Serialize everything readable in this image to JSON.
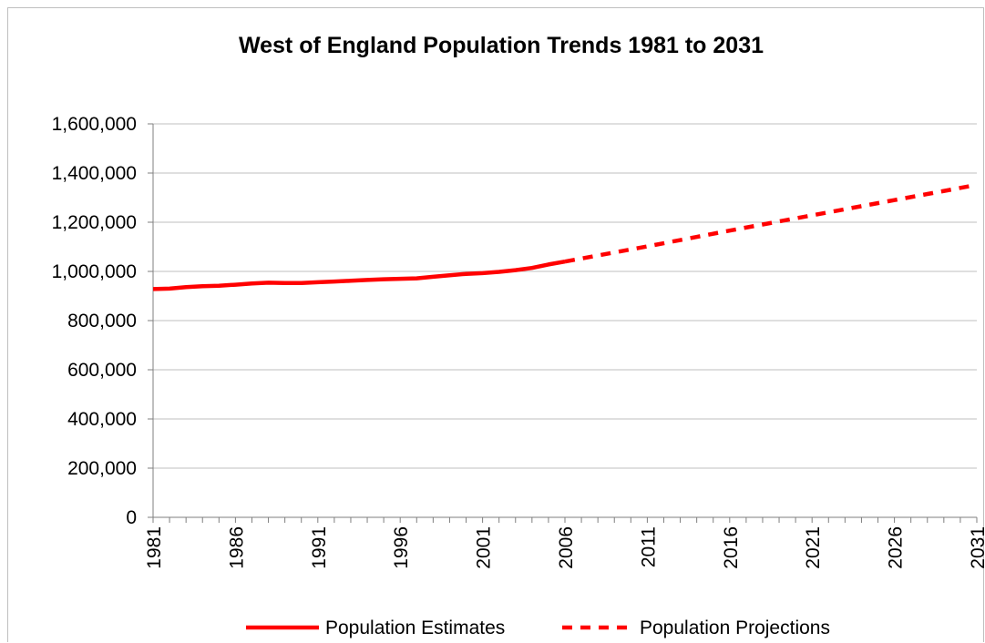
{
  "chart_data": {
    "type": "line",
    "title": "West of England Population Trends 1981 to 2031",
    "xlabel": "",
    "ylabel": "",
    "ylim": [
      0,
      1600000
    ],
    "yticks": [
      "0",
      "200,000",
      "400,000",
      "600,000",
      "800,000",
      "1,000,000",
      "1,200,000",
      "1,400,000",
      "1,600,000"
    ],
    "xticks": [
      "1981",
      "1986",
      "1991",
      "1996",
      "2001",
      "2006",
      "2011",
      "2016",
      "2021",
      "2026",
      "2031"
    ],
    "grid": true,
    "legend_position": "bottom",
    "series": [
      {
        "name": "Population Estimates",
        "style": "solid",
        "color": "#ff0000",
        "x": [
          1981,
          1982,
          1983,
          1984,
          1985,
          1986,
          1987,
          1988,
          1989,
          1990,
          1991,
          1992,
          1993,
          1994,
          1995,
          1996,
          1997,
          1998,
          1999,
          2000,
          2001,
          2002,
          2003,
          2004,
          2005,
          2006
        ],
        "values": [
          928000,
          930000,
          936000,
          940000,
          942000,
          946000,
          951000,
          954000,
          953000,
          953000,
          956000,
          959000,
          962000,
          965000,
          968000,
          970000,
          972000,
          978000,
          984000,
          990000,
          993000,
          998000,
          1005000,
          1014000,
          1028000,
          1040000
        ]
      },
      {
        "name": "Population Projections",
        "style": "dashed",
        "color": "#ff0000",
        "x": [
          2006,
          2011,
          2016,
          2021,
          2026,
          2031
        ],
        "values": [
          1040000,
          1102000,
          1166000,
          1228000,
          1290000,
          1352000
        ]
      }
    ]
  }
}
